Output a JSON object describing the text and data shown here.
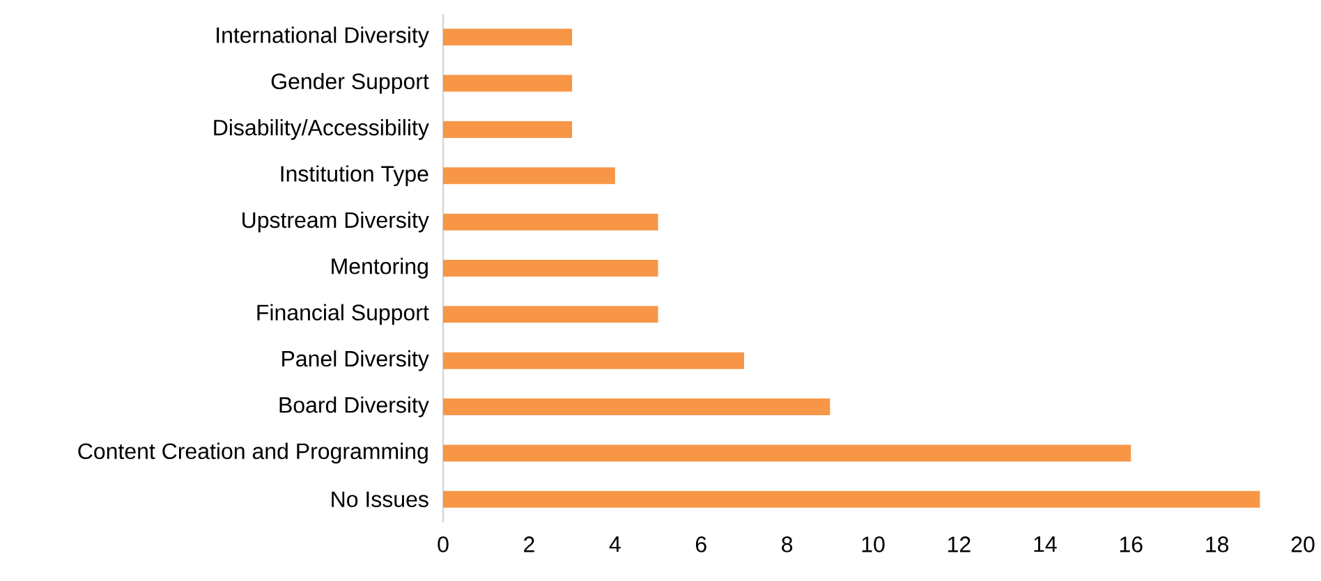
{
  "chart_data": {
    "type": "bar",
    "orientation": "horizontal",
    "categories": [
      "International Diversity",
      "Gender Support",
      "Disability/Accessibility",
      "Institution Type",
      "Upstream Diversity",
      "Mentoring",
      "Financial Support",
      "Panel Diversity",
      "Board Diversity",
      "Content Creation and Programming",
      "No Issues"
    ],
    "values": [
      3,
      3,
      3,
      4,
      5,
      5,
      5,
      7,
      9,
      16,
      19
    ],
    "color": "#f79646",
    "xlim": [
      0,
      20
    ],
    "xticks": [
      0,
      2,
      4,
      6,
      8,
      10,
      12,
      14,
      16,
      18,
      20
    ]
  }
}
